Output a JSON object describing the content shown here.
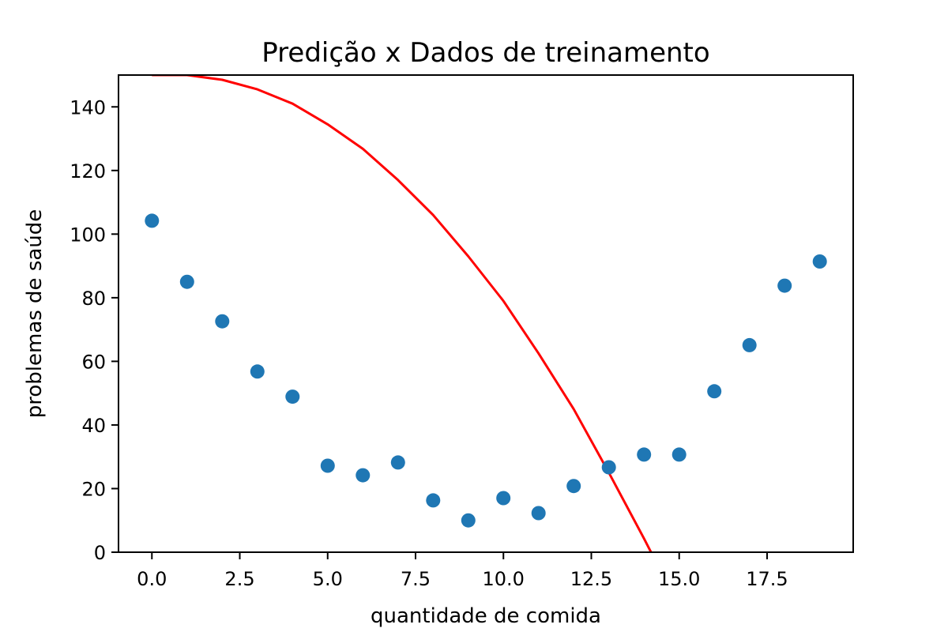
{
  "chart_data": {
    "type": "scatter",
    "title": "Predição x Dados de treinamento",
    "xlabel": "quantidade de comida",
    "ylabel": "problemas de saúde",
    "xlim": [
      -0.95,
      19.95
    ],
    "ylim": [
      0,
      150
    ],
    "xticks": [
      {
        "value": 0.0,
        "label": "0.0"
      },
      {
        "value": 2.5,
        "label": "2.5"
      },
      {
        "value": 5.0,
        "label": "5.0"
      },
      {
        "value": 7.5,
        "label": "7.5"
      },
      {
        "value": 10.0,
        "label": "10.0"
      },
      {
        "value": 12.5,
        "label": "12.5"
      },
      {
        "value": 15.0,
        "label": "15.0"
      },
      {
        "value": 17.5,
        "label": "17.5"
      }
    ],
    "yticks": [
      {
        "value": 0,
        "label": "0"
      },
      {
        "value": 20,
        "label": "20"
      },
      {
        "value": 40,
        "label": "40"
      },
      {
        "value": 60,
        "label": "60"
      },
      {
        "value": 80,
        "label": "80"
      },
      {
        "value": 100,
        "label": "100"
      },
      {
        "value": 120,
        "label": "120"
      },
      {
        "value": 140,
        "label": "140"
      }
    ],
    "grid": false,
    "series": [
      {
        "type": "scatter",
        "color": "#1f77b4",
        "x": [
          0,
          1,
          2,
          3,
          4,
          5,
          6,
          7,
          8,
          9,
          10,
          11,
          12,
          13,
          14,
          15,
          16,
          17,
          18,
          19
        ],
        "y": [
          104.2,
          85.0,
          72.6,
          56.8,
          48.9,
          27.2,
          24.2,
          28.2,
          16.3,
          10.0,
          17.0,
          12.3,
          20.8,
          26.7,
          30.7,
          30.7,
          50.6,
          65.1,
          83.8,
          91.4
        ]
      },
      {
        "type": "line",
        "color": "#ff0000",
        "x": [
          0,
          1,
          2,
          3,
          4,
          5,
          6,
          7,
          8,
          9,
          10,
          11,
          12,
          13,
          14,
          14.2
        ],
        "y": [
          150.0,
          150.0,
          148.5,
          145.5,
          141.0,
          134.5,
          126.8,
          117.0,
          106.0,
          93.0,
          79.0,
          62.5,
          45.0,
          25.0,
          4.3,
          0.0
        ]
      }
    ]
  }
}
